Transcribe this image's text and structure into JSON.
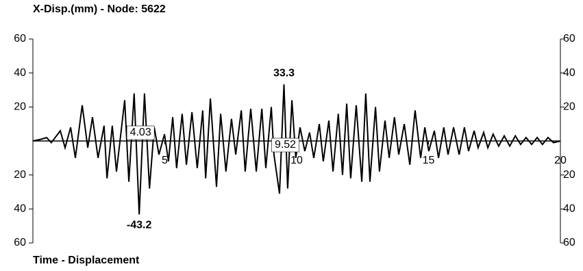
{
  "chart_data": {
    "type": "line",
    "title": "X-Disp.(mm) - Node: 5622",
    "xlabel": "Time - Displacement",
    "xlim": [
      0,
      20
    ],
    "xticks": [
      5,
      10,
      15,
      20
    ],
    "ylim": [
      -60,
      60
    ],
    "yticks": [
      {
        "value": -60,
        "label": "60"
      },
      {
        "value": -40,
        "label": "40"
      },
      {
        "value": -20,
        "label": "20"
      },
      20,
      40,
      60
    ],
    "series": [
      {
        "name": "X-Disp.",
        "color": "#000000",
        "x": [
          0,
          0.31,
          0.52,
          0.7,
          1.04,
          1.22,
          1.43,
          1.61,
          1.87,
          2.08,
          2.26,
          2.47,
          2.7,
          2.81,
          3.01,
          3.17,
          3.48,
          3.64,
          3.84,
          4.03,
          4.23,
          4.42,
          4.6,
          4.78,
          4.99,
          5.14,
          5.3,
          5.45,
          5.66,
          5.82,
          6.03,
          6.23,
          6.44,
          6.55,
          6.73,
          6.96,
          7.12,
          7.32,
          7.53,
          7.69,
          7.9,
          8.05,
          8.26,
          8.47,
          8.68,
          8.83,
          9.04,
          9.14,
          9.35,
          9.52,
          9.66,
          9.82,
          9.97,
          10.13,
          10.31,
          10.49,
          10.65,
          10.86,
          11.01,
          11.22,
          11.38,
          11.58,
          11.74,
          11.9,
          12.05,
          12.26,
          12.47,
          12.62,
          12.78,
          12.99,
          13.14,
          13.35,
          13.51,
          13.71,
          13.87,
          14.08,
          14.29,
          14.49,
          14.7,
          14.86,
          15.01,
          15.22,
          15.38,
          15.58,
          15.74,
          15.95,
          16.16,
          16.36,
          16.52,
          16.73,
          16.88,
          17.09,
          17.25,
          17.45,
          17.66,
          17.87,
          18.08,
          18.29,
          18.49,
          18.7,
          18.91,
          19.12,
          19.32,
          19.53,
          19.74,
          20
        ],
        "values": [
          0,
          1,
          2,
          -1,
          6,
          -4,
          8,
          -10,
          21,
          -4,
          14,
          -10,
          9,
          -22,
          9,
          -18,
          24,
          -24,
          28,
          -43.2,
          28,
          -28,
          8,
          -8,
          4,
          -12,
          14,
          -16,
          16,
          -14,
          17,
          -16,
          18,
          -22,
          25,
          -27,
          16,
          -18,
          13,
          -8,
          18,
          -18,
          19,
          -18,
          19,
          -16,
          20,
          -8,
          -31,
          33.3,
          -28,
          24,
          -10,
          8,
          -6,
          5,
          -10,
          10,
          -12,
          12,
          -18,
          16,
          -20,
          22,
          -22,
          21,
          -24,
          28,
          -24,
          20,
          -18,
          12,
          -10,
          14,
          -8,
          10,
          -14,
          18,
          -10,
          8,
          -6,
          6,
          -10,
          8,
          -8,
          8,
          -8,
          8,
          -6,
          6,
          -4,
          5,
          -4,
          4,
          -3,
          3,
          -3,
          3,
          -2,
          2,
          -2,
          2,
          -2,
          2,
          -1,
          0
        ]
      }
    ],
    "peak_labels": [
      {
        "text": "-43.2",
        "x": 4.03,
        "y": -43.2
      },
      {
        "text": "33.3",
        "x": 9.52,
        "y": 33.3
      }
    ],
    "time_labels": [
      {
        "text": "4.03",
        "x": 4.03
      },
      {
        "text": "9.52",
        "x": 9.52
      }
    ]
  }
}
